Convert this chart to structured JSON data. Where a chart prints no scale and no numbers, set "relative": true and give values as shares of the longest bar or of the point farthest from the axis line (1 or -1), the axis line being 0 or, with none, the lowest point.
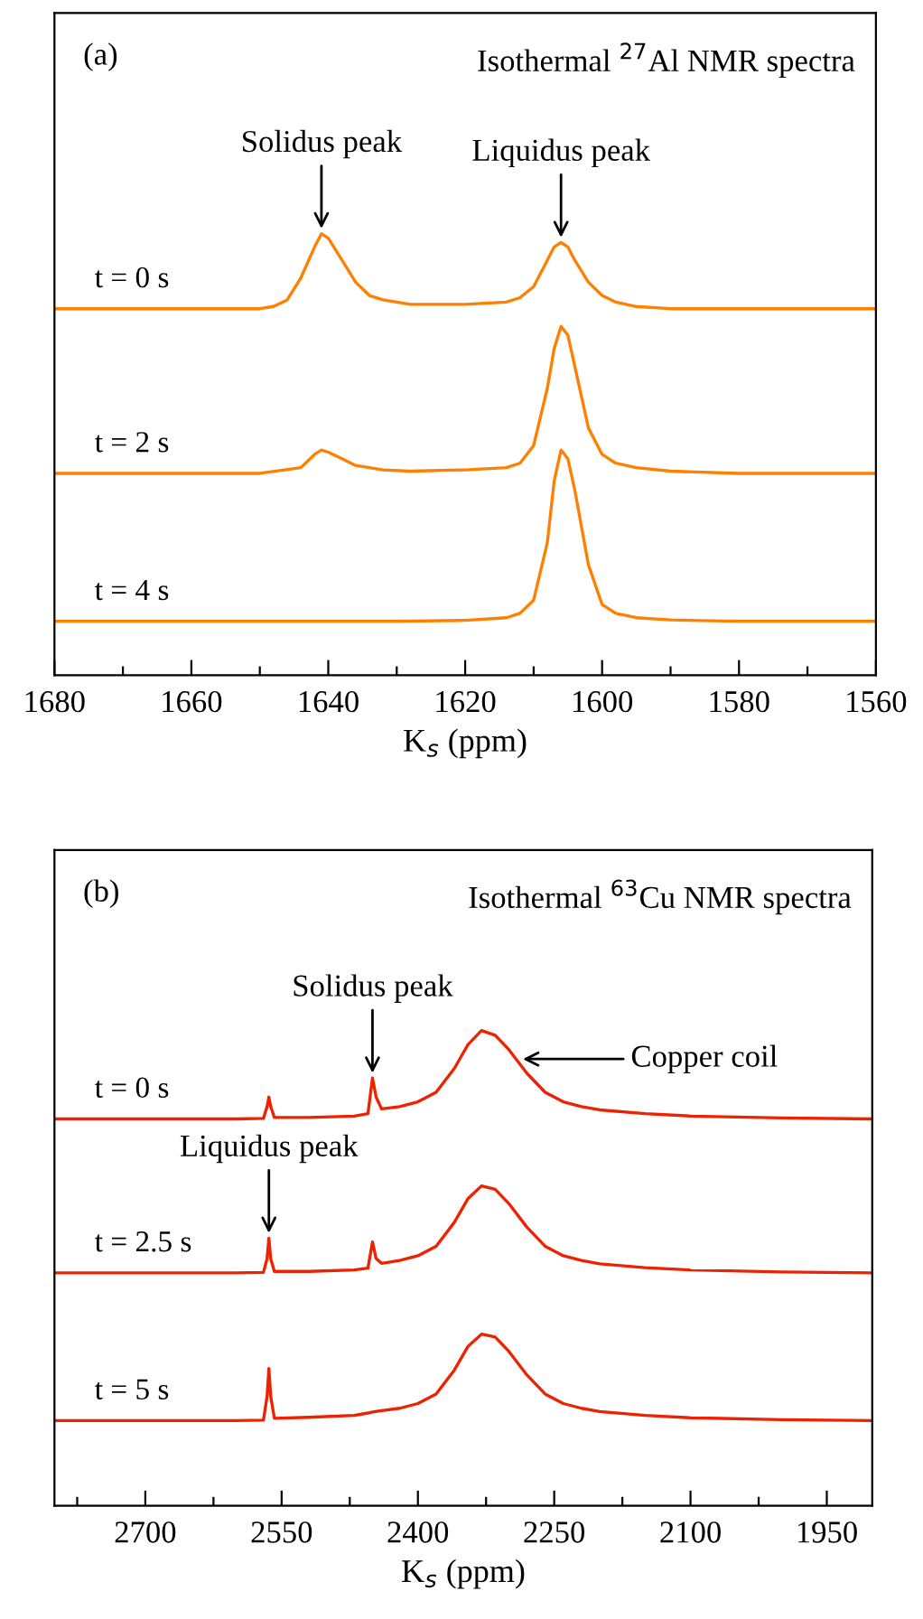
{
  "chart_data": [
    {
      "type": "line",
      "title": "Isothermal $^{27}$Al NMR spectra",
      "xlabel": "K$_{s}$ (ppm)",
      "relative": true,
      "xlim": [
        1680,
        1560
      ],
      "xticks": [
        1680,
        {
          "value": 1670,
          "label": null
        },
        1660,
        {
          "value": 1650,
          "label": null
        },
        1640,
        {
          "value": 1630,
          "label": null
        },
        1620,
        {
          "value": 1610,
          "label": null
        },
        1600,
        {
          "value": 1590,
          "label": null
        },
        1580,
        {
          "value": 1570,
          "label": null
        },
        1560
      ],
      "tick_labels": "x",
      "grid": false,
      "marker": "none",
      "line_style": "solid",
      "annotations": [
        "(a)",
        {
          "text": "Solidus peak",
          "x": 1641,
          "y": 1.0
        },
        {
          "text": "Liquidus peak",
          "x": 1606,
          "y": 0.98
        }
      ],
      "series": [
        {
          "name": "t = 0 s",
          "color": "#ff8000",
          "x": [
            1680,
            1670,
            1660,
            1650,
            1648,
            1646,
            1644,
            1642,
            1641,
            1640,
            1638,
            1636,
            1634,
            1632,
            1628,
            1620,
            1614,
            1612,
            1610,
            1608,
            1607,
            1606,
            1605,
            1604,
            1602,
            1600,
            1598,
            1595,
            1590,
            1580,
            1570,
            1560
          ],
          "values": [
            0.83,
            0.83,
            0.83,
            0.83,
            0.835,
            0.85,
            0.9,
            0.97,
            1.0,
            0.99,
            0.94,
            0.89,
            0.86,
            0.85,
            0.84,
            0.84,
            0.845,
            0.855,
            0.88,
            0.94,
            0.97,
            0.98,
            0.97,
            0.94,
            0.89,
            0.86,
            0.845,
            0.835,
            0.83,
            0.83,
            0.83,
            0.83
          ]
        },
        {
          "name": "t = 2 s",
          "color": "#ff8000",
          "x": [
            1680,
            1670,
            1660,
            1650,
            1644,
            1642,
            1641,
            1640,
            1638,
            1636,
            1634,
            1632,
            1628,
            1620,
            1614,
            1612,
            1610,
            1608,
            1607,
            1606,
            1605,
            1604,
            1602,
            1600,
            1598,
            1595,
            1590,
            1580,
            1570,
            1560
          ],
          "values": [
            0.457,
            0.457,
            0.457,
            0.457,
            0.47,
            0.5,
            0.51,
            0.505,
            0.49,
            0.475,
            0.47,
            0.465,
            0.462,
            0.465,
            0.47,
            0.48,
            0.52,
            0.65,
            0.74,
            0.79,
            0.77,
            0.7,
            0.56,
            0.5,
            0.48,
            0.47,
            0.462,
            0.457,
            0.457,
            0.457
          ]
        },
        {
          "name": "t = 4 s",
          "color": "#ff8000",
          "x": [
            1680,
            1670,
            1660,
            1650,
            1640,
            1630,
            1620,
            1614,
            1612,
            1610,
            1608,
            1607,
            1606,
            1605,
            1604,
            1602,
            1600,
            1598,
            1595,
            1590,
            1580,
            1570,
            1560
          ],
          "values": [
            0.122,
            0.122,
            0.122,
            0.122,
            0.122,
            0.122,
            0.124,
            0.13,
            0.14,
            0.17,
            0.3,
            0.44,
            0.51,
            0.49,
            0.42,
            0.25,
            0.16,
            0.14,
            0.13,
            0.125,
            0.122,
            0.122,
            0.122
          ]
        }
      ]
    },
    {
      "type": "line",
      "title": "Isothermal $^{63}$Cu NMR spectra",
      "xlabel": "K$_{s}$ (ppm)",
      "relative": true,
      "xlim": [
        2800,
        1900
      ],
      "xticks": [
        {
          "value": 2775,
          "label": null
        },
        2700,
        {
          "value": 2625,
          "label": null
        },
        2550,
        {
          "value": 2475,
          "label": null
        },
        2400,
        {
          "value": 2325,
          "label": null
        },
        2250,
        {
          "value": 2175,
          "label": null
        },
        2100,
        {
          "value": 2025,
          "label": null
        },
        1950
      ],
      "tick_labels": "x",
      "grid": false,
      "marker": "none",
      "line_style": "solid",
      "annotations": [
        "(b)",
        {
          "text": "Solidus peak",
          "x": 2450,
          "y": 0.9
        },
        {
          "text": "Copper coil",
          "x": 2290,
          "y": 0.94
        },
        {
          "text": "Liquidus peak",
          "x": 2564,
          "y": 0.563
        }
      ],
      "series": [
        {
          "name": "t = 0 s",
          "color": "#ee2200",
          "x": [
            2800,
            2700,
            2600,
            2570,
            2566,
            2564,
            2562,
            2558,
            2520,
            2470,
            2455,
            2450,
            2446,
            2440,
            2420,
            2400,
            2380,
            2360,
            2345,
            2330,
            2315,
            2300,
            2280,
            2260,
            2240,
            2220,
            2200,
            2150,
            2100,
            2000,
            1900
          ],
          "values": [
            0.814,
            0.814,
            0.814,
            0.815,
            0.84,
            0.86,
            0.84,
            0.817,
            0.817,
            0.82,
            0.825,
            0.9,
            0.86,
            0.835,
            0.84,
            0.85,
            0.87,
            0.92,
            0.97,
            1.0,
            0.99,
            0.96,
            0.91,
            0.87,
            0.85,
            0.84,
            0.833,
            0.825,
            0.82,
            0.816,
            0.814
          ]
        },
        {
          "name": "t = 2.5 s",
          "color": "#ee2200",
          "x": [
            2800,
            2700,
            2600,
            2570,
            2566,
            2564,
            2562,
            2558,
            2520,
            2470,
            2455,
            2450,
            2446,
            2440,
            2420,
            2400,
            2380,
            2360,
            2345,
            2330,
            2315,
            2300,
            2280,
            2260,
            2240,
            2220,
            2200,
            2150,
            2100,
            2000,
            1900
          ],
          "values": [
            0.49,
            0.49,
            0.49,
            0.491,
            0.52,
            0.563,
            0.52,
            0.493,
            0.493,
            0.496,
            0.5,
            0.555,
            0.52,
            0.51,
            0.516,
            0.526,
            0.546,
            0.596,
            0.646,
            0.673,
            0.666,
            0.636,
            0.586,
            0.546,
            0.526,
            0.516,
            0.509,
            0.501,
            0.496,
            0.492,
            0.49
          ]
        },
        {
          "name": "t = 5 s",
          "color": "#ee2200",
          "x": [
            2800,
            2700,
            2600,
            2570,
            2566,
            2564,
            2562,
            2558,
            2520,
            2470,
            2455,
            2450,
            2440,
            2420,
            2400,
            2380,
            2360,
            2345,
            2330,
            2315,
            2300,
            2280,
            2260,
            2240,
            2220,
            2200,
            2150,
            2100,
            2000,
            1900
          ],
          "values": [
            0.179,
            0.179,
            0.179,
            0.18,
            0.23,
            0.289,
            0.23,
            0.184,
            0.186,
            0.19,
            0.195,
            0.197,
            0.2,
            0.205,
            0.215,
            0.235,
            0.285,
            0.335,
            0.361,
            0.355,
            0.325,
            0.275,
            0.235,
            0.215,
            0.205,
            0.198,
            0.19,
            0.185,
            0.181,
            0.179
          ]
        }
      ]
    }
  ]
}
